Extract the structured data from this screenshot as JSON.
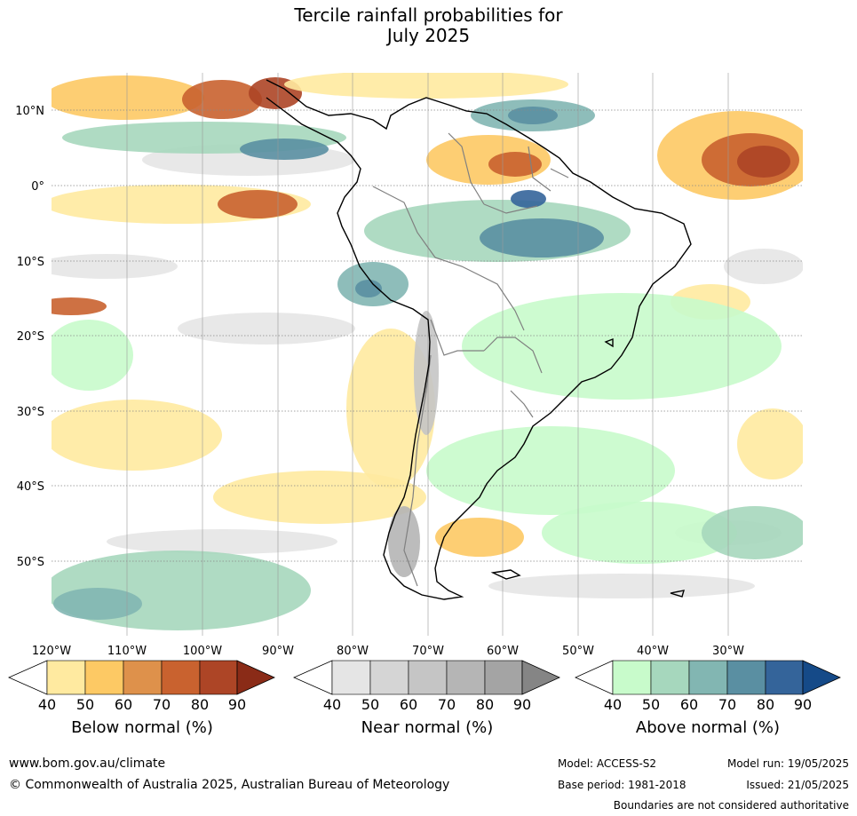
{
  "title": {
    "line1": "Tercile rainfall probabilities for",
    "line2": "July 2025"
  },
  "map": {
    "lat_labels": [
      "10°N",
      "0°",
      "10°S",
      "20°S",
      "30°S",
      "40°S",
      "50°S"
    ],
    "lon_labels": [
      "120°W",
      "110°W",
      "100°W",
      "90°W",
      "80°W",
      "70°W",
      "60°W",
      "50°W",
      "40°W",
      "30°W"
    ],
    "colors": {
      "below": [
        "#ffeaa0",
        "#fdc964",
        "#de914b",
        "#c9622f",
        "#ad4526",
        "#8a2b17"
      ],
      "near": [
        "#e5e5e5",
        "#d5d5d5",
        "#c5c5c5",
        "#b5b5b5",
        "#a4a4a4",
        "#858585"
      ],
      "above": [
        "#c8fbcb",
        "#a6d7bd",
        "#82b6b2",
        "#5a8fa2",
        "#34649a",
        "#154a88"
      ],
      "coastline": "#000000",
      "borders": "#808080"
    }
  },
  "legends": [
    {
      "label": "Below normal (%)",
      "ticks": [
        "40",
        "50",
        "60",
        "70",
        "80",
        "90"
      ]
    },
    {
      "label": "Near normal (%)",
      "ticks": [
        "40",
        "50",
        "60",
        "70",
        "80",
        "90"
      ]
    },
    {
      "label": "Above normal (%)",
      "ticks": [
        "40",
        "50",
        "60",
        "70",
        "80",
        "90"
      ]
    }
  ],
  "footer": {
    "url": "www.bom.gov.au/climate",
    "copyright": "© Commonwealth of Australia 2025, Australian Bureau of Meteorology",
    "model": "Model: ACCESS-S2",
    "model_run": "Model run: 19/05/2025",
    "base_period": "Base period: 1981-2018",
    "issued": "Issued: 21/05/2025",
    "disclaimer": "Boundaries are not considered authoritative"
  }
}
